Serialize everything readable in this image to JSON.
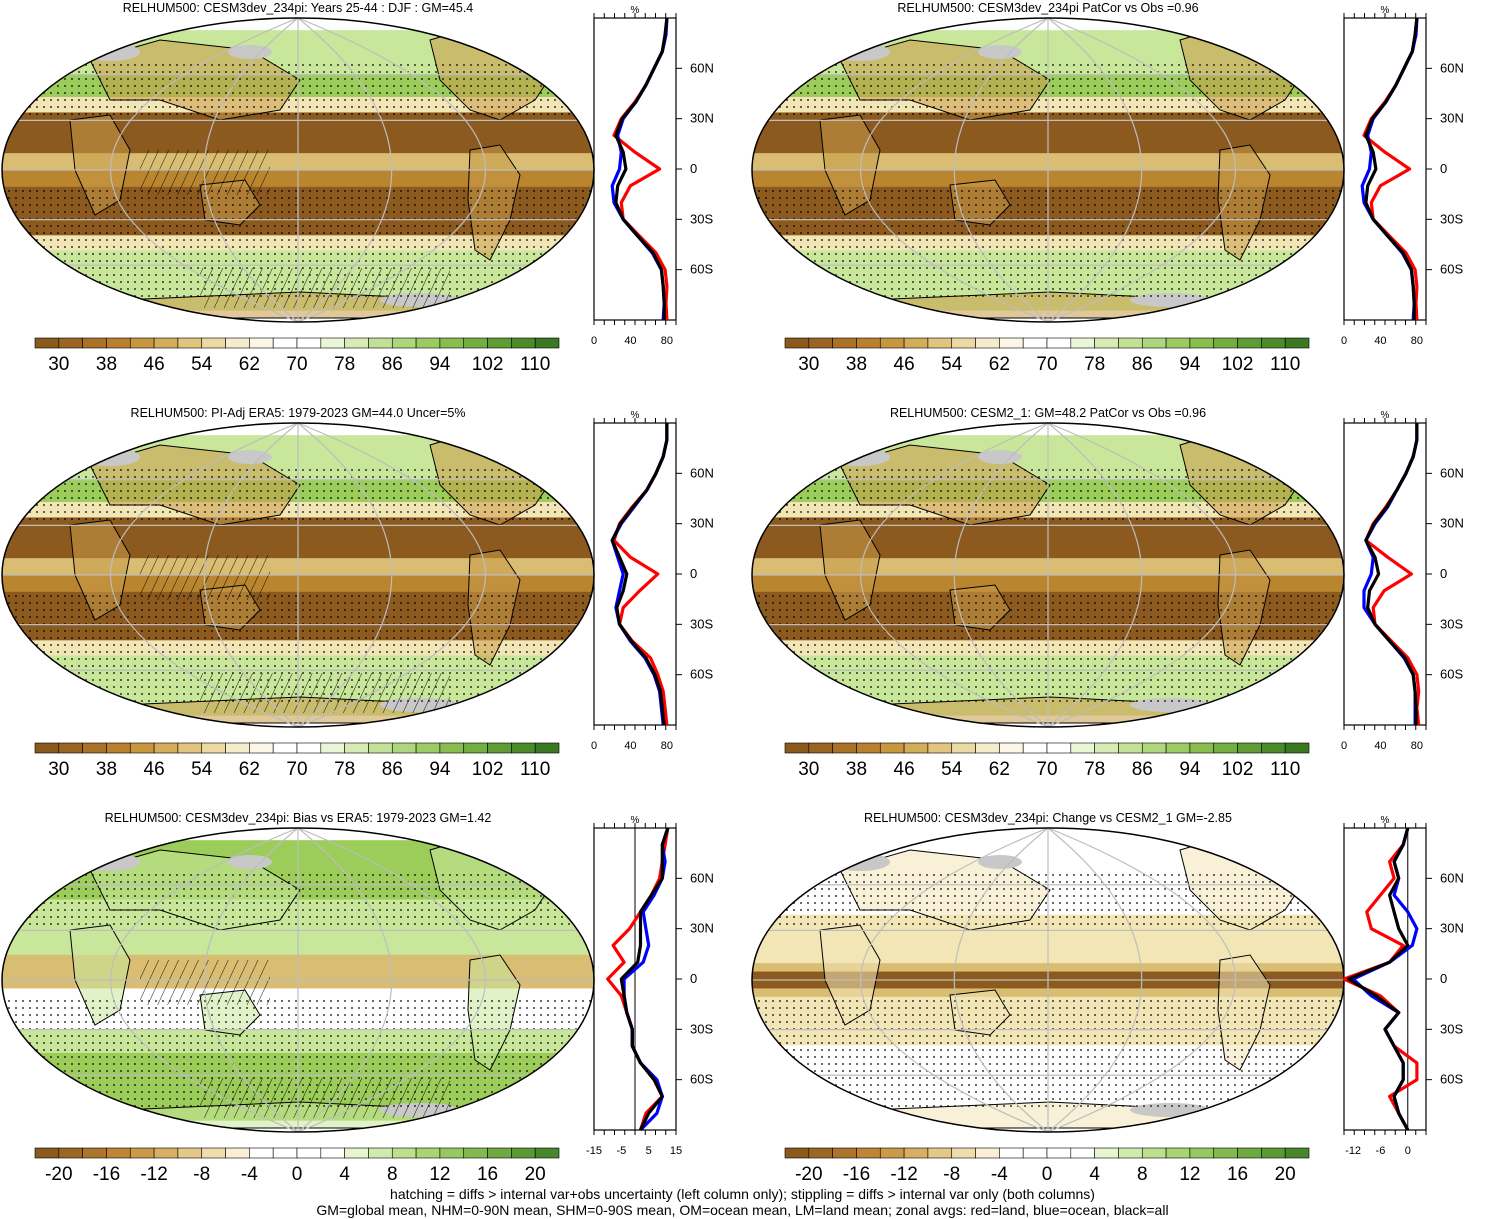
{
  "figure": {
    "variable": "RELHUM500",
    "colors": {
      "brown_dark": "#8c5a1e",
      "brown_mid": "#b9852f",
      "tan": "#d9bd72",
      "cream": "#f3e6b6",
      "white": "#ffffff",
      "green_light": "#c9e79a",
      "green_mid": "#9ccd5a",
      "green_dark": "#5c9a32",
      "land_gray": "#c8c8c8",
      "grid_gray": "#bdbdbd",
      "line_land": "#ff0000",
      "line_ocean": "#0000ff",
      "line_all": "#000000"
    }
  },
  "footer": {
    "line1": "hatching = diffs > internal var+obs uncertainty (left column only); stippling = diffs > internal var only (both columns)",
    "line2": "GM=global mean, NHM=0-90N mean, SHM=0-90S mean, OM=ocean mean, LM=land mean; zonal avgs: red=land, blue=ocean, black=all"
  },
  "chart_data": [
    {
      "type": "heatmap",
      "title": "RELHUM500: CESM3dev_234pi: Years 25-44 : DJF : GM=45.4",
      "colorbar_labels": [
        "30",
        "38",
        "46",
        "54",
        "62",
        "70",
        "78",
        "86",
        "94",
        "102",
        "110"
      ],
      "colorbar_range": [
        26,
        114
      ],
      "profile": {
        "title": "%",
        "xlim": [
          0,
          90
        ],
        "xtick_labels": [
          "0",
          "40",
          "80"
        ],
        "xtick_values": [
          0,
          40,
          80
        ],
        "ylim": [
          -90,
          90
        ],
        "ytick_labels": [
          "60N",
          "30N",
          "0",
          "30S",
          "60S"
        ],
        "ytick_values": [
          60,
          30,
          0,
          -30,
          -60
        ],
        "lat": [
          -90,
          -80,
          -70,
          -60,
          -50,
          -40,
          -30,
          -20,
          -10,
          0,
          10,
          20,
          30,
          40,
          50,
          60,
          70,
          80,
          90
        ],
        "series": [
          {
            "name": "land",
            "color": "red",
            "values": [
              80,
              79,
              80,
              78,
              68,
              50,
              32,
              30,
              40,
              72,
              45,
              22,
              30,
              45,
              57,
              66,
              75,
              78,
              80
            ]
          },
          {
            "name": "ocean",
            "color": "blue",
            "values": [
              76,
              77,
              76,
              74,
              64,
              48,
              32,
              22,
              20,
              28,
              30,
              26,
              32,
              46,
              57,
              66,
              75,
              79,
              80
            ]
          },
          {
            "name": "all",
            "color": "black",
            "values": [
              77,
              77,
              76,
              74,
              65,
              48,
              32,
              24,
              26,
              35,
              32,
              24,
              31,
              46,
              57,
              66,
              75,
              78,
              80
            ]
          }
        ]
      }
    },
    {
      "type": "heatmap",
      "title": "RELHUM500: CESM3dev_234pi PatCor vs Obs =0.96",
      "colorbar_labels": [
        "30",
        "38",
        "46",
        "54",
        "62",
        "70",
        "78",
        "86",
        "94",
        "102",
        "110"
      ],
      "colorbar_range": [
        26,
        114
      ],
      "profile": {
        "title": "%",
        "xlim": [
          0,
          90
        ],
        "xtick_labels": [
          "0",
          "40",
          "80"
        ],
        "xtick_values": [
          0,
          40,
          80
        ],
        "ylim": [
          -90,
          90
        ],
        "ytick_labels": [
          "60N",
          "30N",
          "0",
          "30S",
          "60S"
        ],
        "ytick_values": [
          60,
          30,
          0,
          -30,
          -60
        ],
        "lat": [
          -90,
          -80,
          -70,
          -60,
          -50,
          -40,
          -30,
          -20,
          -10,
          0,
          10,
          20,
          30,
          40,
          50,
          60,
          70,
          80,
          90
        ],
        "series": [
          {
            "name": "land",
            "color": "red",
            "values": [
              80,
              79,
              80,
              78,
              68,
              50,
              32,
              30,
              40,
              72,
              45,
              22,
              30,
              45,
              57,
              66,
              75,
              78,
              80
            ]
          },
          {
            "name": "ocean",
            "color": "blue",
            "values": [
              76,
              77,
              76,
              74,
              64,
              48,
              32,
              22,
              20,
              28,
              30,
              26,
              32,
              46,
              57,
              66,
              75,
              79,
              80
            ]
          },
          {
            "name": "all",
            "color": "black",
            "values": [
              77,
              77,
              76,
              74,
              65,
              48,
              32,
              24,
              26,
              35,
              32,
              24,
              31,
              46,
              57,
              66,
              75,
              78,
              80
            ]
          }
        ]
      }
    },
    {
      "type": "heatmap",
      "title": "RELHUM500: PI-Adj ERA5: 1979-2023 GM=44.0 Uncer=5%",
      "colorbar_labels": [
        "30",
        "38",
        "46",
        "54",
        "62",
        "70",
        "78",
        "86",
        "94",
        "102",
        "110"
      ],
      "colorbar_range": [
        26,
        114
      ],
      "profile": {
        "title": "%",
        "xlim": [
          0,
          90
        ],
        "xtick_labels": [
          "0",
          "40",
          "80"
        ],
        "xtick_values": [
          0,
          40,
          80
        ],
        "ylim": [
          -90,
          90
        ],
        "ytick_labels": [
          "60N",
          "30N",
          "0",
          "30S",
          "60S"
        ],
        "ytick_values": [
          60,
          30,
          0,
          -30,
          -60
        ],
        "lat": [
          -90,
          -80,
          -70,
          -60,
          -50,
          -40,
          -30,
          -20,
          -10,
          0,
          10,
          20,
          30,
          40,
          50,
          60,
          70,
          80,
          90
        ],
        "series": [
          {
            "name": "land",
            "color": "red",
            "values": [
              80,
              78,
              76,
              70,
              62,
              42,
              28,
              32,
              50,
              70,
              40,
              22,
              28,
              42,
              58,
              68,
              76,
              80,
              80
            ]
          },
          {
            "name": "ocean",
            "color": "blue",
            "values": [
              76,
              74,
              72,
              66,
              56,
              40,
              28,
              24,
              28,
              32,
              26,
              20,
              30,
              44,
              58,
              68,
              76,
              80,
              80
            ]
          },
          {
            "name": "all",
            "color": "black",
            "values": [
              77,
              75,
              73,
              67,
              57,
              41,
              28,
              25,
              32,
              36,
              28,
              20,
              29,
              43,
              58,
              68,
              76,
              80,
              80
            ]
          }
        ]
      }
    },
    {
      "type": "heatmap",
      "title": "RELHUM500: CESM2_1: GM=48.2 PatCor vs Obs =0.96",
      "colorbar_labels": [
        "30",
        "38",
        "46",
        "54",
        "62",
        "70",
        "78",
        "86",
        "94",
        "102",
        "110"
      ],
      "colorbar_range": [
        26,
        114
      ],
      "profile": {
        "title": "%",
        "xlim": [
          0,
          90
        ],
        "xtick_labels": [
          "0",
          "40",
          "80"
        ],
        "xtick_values": [
          0,
          40,
          80
        ],
        "ylim": [
          -90,
          90
        ],
        "ytick_labels": [
          "60N",
          "30N",
          "0",
          "30S",
          "60S"
        ],
        "ytick_values": [
          60,
          30,
          0,
          -30,
          -60
        ],
        "lat": [
          -90,
          -80,
          -70,
          -60,
          -50,
          -40,
          -30,
          -20,
          -10,
          0,
          10,
          20,
          30,
          40,
          50,
          60,
          70,
          80,
          90
        ],
        "series": [
          {
            "name": "land",
            "color": "red",
            "values": [
              82,
              80,
              82,
              80,
              70,
              52,
              34,
              32,
              44,
              74,
              48,
              24,
              32,
              46,
              58,
              68,
              76,
              80,
              80
            ]
          },
          {
            "name": "ocean",
            "color": "blue",
            "values": [
              78,
              78,
              78,
              76,
              66,
              50,
              34,
              22,
              22,
              30,
              32,
              24,
              34,
              48,
              58,
              68,
              76,
              80,
              80
            ]
          },
          {
            "name": "all",
            "color": "black",
            "values": [
              79,
              79,
              78,
              76,
              67,
              50,
              34,
              26,
              28,
              38,
              34,
              24,
              33,
              47,
              58,
              68,
              76,
              80,
              80
            ]
          }
        ]
      }
    },
    {
      "type": "heatmap",
      "title": "RELHUM500: CESM3dev_234pi: Bias vs ERA5: 1979-2023 GM=1.42",
      "colorbar_labels": [
        "-20",
        "-16",
        "-12",
        "-8",
        "-4",
        "0",
        "4",
        "8",
        "12",
        "16",
        "20"
      ],
      "colorbar_range": [
        -22,
        22
      ],
      "profile": {
        "title": "%",
        "xlim": [
          -15,
          15
        ],
        "xtick_labels": [
          "-15",
          "-5",
          "5",
          "15"
        ],
        "xtick_values": [
          -15,
          -5,
          5,
          15
        ],
        "ylim": [
          -90,
          90
        ],
        "ytick_labels": [
          "60N",
          "30N",
          "0",
          "30S",
          "60S"
        ],
        "ytick_values": [
          60,
          30,
          0,
          -30,
          -60
        ],
        "lat": [
          -90,
          -80,
          -70,
          -60,
          -50,
          -40,
          -30,
          -20,
          -10,
          0,
          10,
          20,
          30,
          40,
          50,
          60,
          70,
          80,
          90
        ],
        "series": [
          {
            "name": "land",
            "color": "red",
            "values": [
              2,
              4,
              10,
              7,
              2,
              -1,
              -1,
              -3,
              -5,
              -10,
              -4,
              -8,
              -2,
              2,
              6,
              9,
              10,
              11,
              12
            ]
          },
          {
            "name": "ocean",
            "color": "blue",
            "values": [
              2,
              8,
              10,
              8,
              2,
              -1,
              -1,
              -3,
              -4,
              -4,
              3,
              5,
              4,
              3,
              7,
              10,
              11,
              10,
              12
            ]
          },
          {
            "name": "all",
            "color": "black",
            "values": [
              2,
              5,
              10,
              7,
              2,
              -1,
              -1,
              -3,
              -4,
              -5,
              1,
              2,
              2,
              2,
              6,
              10,
              10,
              10,
              12
            ]
          }
        ]
      }
    },
    {
      "type": "heatmap",
      "title": "RELHUM500: CESM3dev_234pi: Change vs CESM2_1 GM=-2.85",
      "colorbar_labels": [
        "-20",
        "-16",
        "-12",
        "-8",
        "-4",
        "0",
        "4",
        "8",
        "12",
        "16",
        "20"
      ],
      "colorbar_range": [
        -22,
        22
      ],
      "profile": {
        "title": "%",
        "xlim": [
          -14,
          4
        ],
        "xtick_labels": [
          "-12",
          "-6",
          "0"
        ],
        "xtick_values": [
          -12,
          -6,
          0
        ],
        "ylim": [
          -90,
          90
        ],
        "ytick_labels": [
          "60N",
          "30N",
          "0",
          "30S",
          "60S"
        ],
        "ytick_values": [
          60,
          30,
          0,
          -30,
          -60
        ],
        "lat": [
          -90,
          -80,
          -70,
          -60,
          -50,
          -40,
          -30,
          -20,
          -10,
          0,
          10,
          20,
          30,
          40,
          50,
          60,
          70,
          80,
          90
        ],
        "series": [
          {
            "name": "land",
            "color": "red",
            "values": [
              0,
              -2,
              -4,
              2,
              2,
              -3,
              -5,
              -2,
              -6,
              -14,
              -4,
              -1,
              -8,
              -9,
              -6,
              -3,
              -4,
              -1,
              0
            ]
          },
          {
            "name": "ocean",
            "color": "blue",
            "values": [
              0,
              -2,
              -3,
              -1,
              -1,
              -3,
              -5,
              -2,
              -8,
              -12,
              -4,
              1,
              2,
              0,
              -3,
              -2,
              -3,
              -1,
              0
            ]
          },
          {
            "name": "all",
            "color": "black",
            "values": [
              0,
              -2,
              -3,
              -1,
              -1,
              -3,
              -5,
              -2,
              -7,
              -13,
              -4,
              0,
              -2,
              -3,
              -4,
              -2,
              -3,
              -1,
              0
            ]
          }
        ]
      }
    }
  ]
}
